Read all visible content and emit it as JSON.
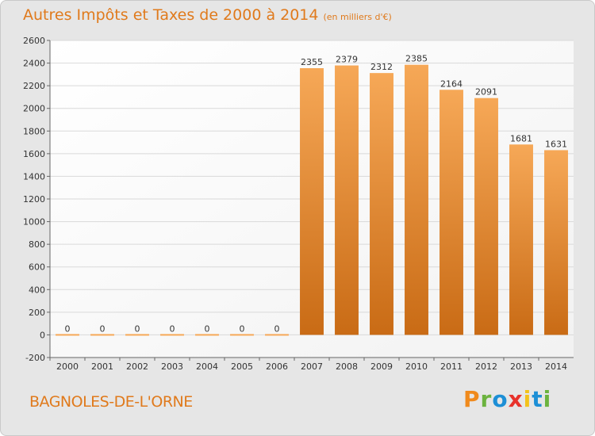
{
  "title": "Autres Impôts et Taxes de 2000 à 2014",
  "unit_note": "(en milliers d'€)",
  "place": "BAGNOLES-DE-L'ORNE",
  "brand": {
    "text": "Proxiti",
    "letter_colors": [
      "#f08a1c",
      "#6cb33f",
      "#1d8fd6",
      "#e8322b",
      "#f3c21b",
      "#1d8fd6",
      "#6cb33f"
    ]
  },
  "colors": {
    "title": "#e07a1c",
    "bar_top": "#f6a857",
    "bar_bottom": "#c96b15",
    "plot_bg": "#ffffff",
    "grid": "#d9d9d9",
    "frame_bg": "#e6e6e6"
  },
  "chart_data": {
    "type": "bar",
    "title": "Autres Impôts et Taxes de 2000 à 2014",
    "subtitle": "(en milliers d'€)",
    "categories": [
      "2000",
      "2001",
      "2002",
      "2003",
      "2004",
      "2005",
      "2006",
      "2007",
      "2008",
      "2009",
      "2010",
      "2011",
      "2012",
      "2013",
      "2014"
    ],
    "values": [
      0,
      0,
      0,
      0,
      0,
      0,
      0,
      2355,
      2379,
      2312,
      2385,
      2164,
      2091,
      1681,
      1631
    ],
    "ylim": [
      -200,
      2600
    ],
    "yticks": [
      -200,
      0,
      200,
      400,
      600,
      800,
      1000,
      1200,
      1400,
      1600,
      1800,
      2000,
      2200,
      2400,
      2600
    ],
    "grid": true,
    "data_labels": true,
    "legend": "none"
  }
}
